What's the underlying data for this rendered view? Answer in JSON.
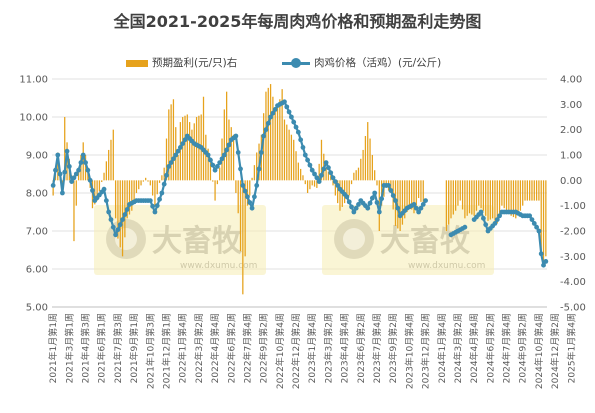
{
  "chart_data": {
    "type": "bar+line",
    "title": "全国2021-2025年每周肉鸡价格和预期盈利走势图",
    "legend": {
      "position": "top-center",
      "entries": [
        {
          "name": "预期盈利(元/只)右",
          "type": "bar",
          "color": "#e6a21c"
        },
        {
          "name": "肉鸡价格（活鸡）(元/公斤)",
          "type": "line",
          "color": "#3c8bb0"
        }
      ]
    },
    "y_left": {
      "range": [
        5,
        11
      ],
      "ticks": [
        "5.00",
        "6.00",
        "7.00",
        "8.00",
        "9.00",
        "10.00",
        "11.00"
      ]
    },
    "y_right": {
      "range": [
        -5,
        4
      ],
      "ticks": [
        "-5.00",
        "-4.00",
        "-3.00",
        "-2.00",
        "-1.00",
        "0.00",
        "1.00",
        "2.00",
        "3.00",
        "4.00"
      ]
    },
    "grid": "horizontal",
    "x_categories": [
      "2021年1月第1周",
      "2021年3月第1周",
      "2021年4月第3周",
      "2021年6月第1周",
      "2021年7月第3周",
      "2021年9月第1周",
      "2021年10月第3周",
      "2021年12月第1周",
      "2022年1月第4周",
      "2022年3月第2周",
      "2022年4月第4周",
      "2022年6月第2周",
      "2022年7月第4周",
      "2022年9月第2周",
      "2022年10月第4周",
      "2022年12月第2周",
      "2023年1月第4周",
      "2023年3月第2周",
      "2023年4月第4周",
      "2023年6月第2周",
      "2023年7月第4周",
      "2023年9月第2周",
      "2023年10月第4周",
      "2023年12月第2周",
      "2024年1月第4周",
      "2024年3月第2周",
      "2024年4月第4周",
      "2024年6月第2周",
      "2024年7月第4周",
      "2024年9月第2周",
      "2024年10月第4周",
      "2024年12月第2周",
      "2025年1月第4周"
    ],
    "price_series": {
      "name": "肉鸡价格（活鸡）(元/公斤)",
      "axis": "left",
      "keypoints": [
        [
          0,
          8.2
        ],
        [
          2,
          9.0
        ],
        [
          4,
          8.0
        ],
        [
          6,
          9.1
        ],
        [
          8,
          8.3
        ],
        [
          11,
          8.6
        ],
        [
          13,
          9.0
        ],
        [
          15,
          8.6
        ],
        [
          18,
          7.8
        ],
        [
          22,
          8.1
        ],
        [
          24,
          7.5
        ],
        [
          27,
          6.9
        ],
        [
          30,
          7.3
        ],
        [
          33,
          7.7
        ],
        [
          36,
          7.8
        ],
        [
          38,
          7.8
        ],
        [
          42,
          7.8
        ],
        [
          44,
          7.5
        ],
        [
          47,
          8.0
        ],
        [
          50,
          8.7
        ],
        [
          53,
          9.0
        ],
        [
          56,
          9.3
        ],
        [
          58,
          9.5
        ],
        [
          61,
          9.3
        ],
        [
          64,
          9.2
        ],
        [
          67,
          9.0
        ],
        [
          70,
          8.6
        ],
        [
          74,
          9.0
        ],
        [
          77,
          9.4
        ],
        [
          79,
          9.5
        ],
        [
          82,
          8.2
        ],
        [
          84,
          7.9
        ],
        [
          86,
          7.6
        ],
        [
          88,
          8.2
        ],
        [
          91,
          9.5
        ],
        [
          94,
          10.0
        ],
        [
          97,
          10.3
        ],
        [
          100,
          10.4
        ],
        [
          103,
          10.0
        ],
        [
          106,
          9.6
        ],
        [
          109,
          9.0
        ],
        [
          112,
          8.6
        ],
        [
          115,
          8.3
        ],
        [
          118,
          8.8
        ],
        [
          121,
          8.4
        ],
        [
          124,
          8.1
        ],
        [
          127,
          7.9
        ],
        [
          130,
          7.5
        ],
        [
          133,
          7.8
        ],
        [
          136,
          7.6
        ],
        [
          139,
          8.0
        ],
        [
          141,
          7.5
        ],
        [
          143,
          8.2
        ],
        [
          145,
          8.2
        ],
        [
          148,
          7.8
        ],
        [
          150,
          7.4
        ],
        [
          153,
          7.6
        ],
        [
          156,
          7.7
        ],
        [
          158,
          7.5
        ],
        [
          161,
          7.8
        ],
        null,
        [
          172,
          6.9
        ],
        [
          175,
          7.0
        ],
        [
          178,
          7.1
        ],
        null,
        [
          182,
          7.3
        ],
        [
          185,
          7.5
        ],
        [
          188,
          7.0
        ],
        [
          191,
          7.2
        ],
        [
          194,
          7.5
        ],
        [
          197,
          7.5
        ],
        [
          200,
          7.5
        ],
        [
          203,
          7.4
        ],
        [
          206,
          7.4
        ],
        [
          208,
          7.2
        ],
        [
          210,
          7.0
        ],
        [
          211,
          6.4
        ],
        [
          212,
          6.1
        ],
        [
          213,
          6.2
        ]
      ]
    },
    "profit_series": {
      "name": "预期盈利(元/只)右",
      "axis": "right",
      "keypoints": [
        [
          0,
          -0.6
        ],
        [
          2,
          1.1
        ],
        [
          4,
          -0.5
        ],
        [
          5,
          2.5
        ],
        [
          6,
          1.5
        ],
        [
          8,
          0.2
        ],
        [
          9,
          -2.4
        ],
        [
          10,
          -1.0
        ],
        [
          11,
          0.5
        ],
        [
          13,
          1.5
        ],
        [
          15,
          0.5
        ],
        [
          17,
          -1.1
        ],
        [
          19,
          -0.8
        ],
        [
          22,
          0.3
        ],
        [
          24,
          1.2
        ],
        [
          26,
          2.0
        ],
        [
          27,
          -1.5
        ],
        [
          28,
          -2.3
        ],
        [
          30,
          -3.0
        ],
        [
          32,
          -1.5
        ],
        [
          34,
          -1.2
        ],
        [
          36,
          -0.5
        ],
        [
          38,
          -0.2
        ],
        [
          40,
          0.1
        ],
        [
          42,
          -0.2
        ],
        [
          44,
          -1.0
        ],
        [
          46,
          -0.1
        ],
        [
          48,
          0.5
        ],
        [
          50,
          2.8
        ],
        [
          52,
          3.2
        ],
        [
          54,
          1.0
        ],
        [
          55,
          2.3
        ],
        [
          56,
          2.5
        ],
        [
          58,
          2.6
        ],
        [
          60,
          2.0
        ],
        [
          62,
          2.5
        ],
        [
          64,
          2.6
        ],
        [
          65,
          3.3
        ],
        [
          66,
          1.8
        ],
        [
          68,
          0.7
        ],
        [
          70,
          -0.8
        ],
        [
          72,
          0.5
        ],
        [
          74,
          2.8
        ],
        [
          75,
          3.5
        ],
        [
          76,
          2.4
        ],
        [
          78,
          1.8
        ],
        [
          79,
          -0.5
        ],
        [
          80,
          -1.3
        ],
        [
          81,
          -2.8
        ],
        [
          82,
          -4.5
        ],
        [
          83,
          -3.0
        ],
        [
          84,
          -1.0
        ],
        [
          85,
          -0.6
        ],
        [
          86,
          0.1
        ],
        [
          88,
          1.1
        ],
        [
          90,
          1.8
        ],
        [
          92,
          3.5
        ],
        [
          94,
          3.8
        ],
        [
          96,
          2.8
        ],
        [
          98,
          3.2
        ],
        [
          99,
          3.6
        ],
        [
          100,
          2.4
        ],
        [
          102,
          2.0
        ],
        [
          104,
          1.6
        ],
        [
          106,
          0.7
        ],
        [
          108,
          0.2
        ],
        [
          110,
          -0.5
        ],
        [
          112,
          -0.2
        ],
        [
          114,
          -0.3
        ],
        [
          116,
          1.6
        ],
        [
          118,
          0.5
        ],
        [
          120,
          0.2
        ],
        [
          122,
          -0.6
        ],
        [
          124,
          -1.2
        ],
        [
          126,
          -0.9
        ],
        [
          128,
          -0.6
        ],
        [
          130,
          0.3
        ],
        [
          132,
          0.5
        ],
        [
          134,
          1.2
        ],
        [
          136,
          2.3
        ],
        [
          138,
          1.0
        ],
        [
          140,
          -0.2
        ],
        [
          141,
          -2.0
        ],
        [
          142,
          -1.0
        ],
        [
          144,
          -0.3
        ],
        [
          146,
          -0.5
        ],
        [
          148,
          -1.8
        ],
        [
          150,
          -2.0
        ],
        [
          152,
          -1.5
        ],
        [
          154,
          -1.0
        ],
        [
          156,
          -1.3
        ],
        [
          158,
          -0.7
        ],
        [
          160,
          -1.0
        ],
        null,
        [
          170,
          -2.0
        ],
        [
          172,
          -1.5
        ],
        [
          174,
          -1.2
        ],
        [
          176,
          -0.8
        ],
        [
          178,
          -1.5
        ],
        [
          180,
          -1.3
        ],
        [
          182,
          -1.4
        ],
        [
          184,
          -1.0
        ],
        [
          186,
          -1.2
        ],
        [
          188,
          -1.6
        ],
        [
          190,
          -1.5
        ],
        [
          192,
          -1.7
        ],
        [
          194,
          -1.0
        ],
        [
          196,
          -1.2
        ],
        [
          198,
          -1.4
        ],
        [
          200,
          -1.5
        ],
        [
          202,
          -1.2
        ],
        [
          204,
          -0.8
        ],
        [
          206,
          -0.8
        ],
        [
          208,
          -0.8
        ],
        [
          210,
          -0.8
        ],
        [
          211,
          -2.8
        ],
        [
          212,
          -3.2
        ],
        [
          213,
          -3.0
        ]
      ]
    },
    "n_weeks": 214,
    "watermark": {
      "brand": "大畜牧",
      "url": "www.dxumu.com"
    }
  }
}
